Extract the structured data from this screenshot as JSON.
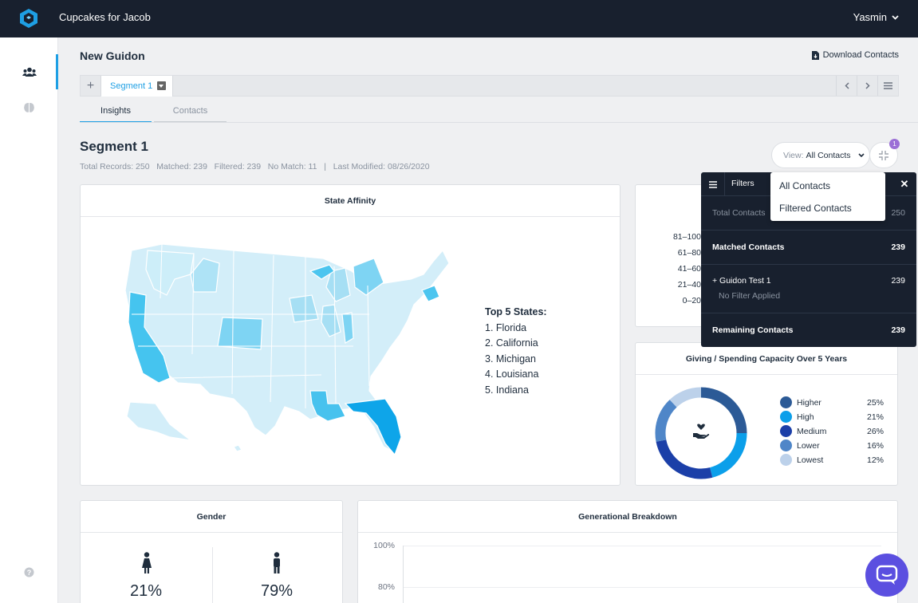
{
  "header": {
    "app_title": "Cupcakes for Jacob",
    "user_name": "Yasmin"
  },
  "page": {
    "title": "New Guidon",
    "download_label": "Download Contacts"
  },
  "segment_tabs": {
    "add": "+",
    "active_tab": "Segment 1"
  },
  "tabs": [
    {
      "label": "Insights",
      "active": true
    },
    {
      "label": "Contacts",
      "active": false
    }
  ],
  "segment": {
    "title": "Segment 1",
    "meta": "Total Records: 250   Matched: 239   Filtered: 239   No Match: 11   |   Last Modified: 08/26/2020"
  },
  "view": {
    "label": "View:",
    "value": "All Contacts",
    "options": [
      "All Contacts",
      "Filtered Contacts"
    ],
    "badge": "1"
  },
  "state_affinity": {
    "title": "State Affinity",
    "top5_heading": "Top 5 States:",
    "top5": [
      "1. Florida",
      "2. California",
      "3. Michigan",
      "4. Louisiana",
      "5. Indiana"
    ]
  },
  "score_bars": {
    "labels": [
      "81–100",
      "61–80",
      "41–60",
      "21–40",
      "0–20"
    ]
  },
  "filters_panel": {
    "title": "Filters",
    "total_label": "Total Contacts",
    "total_value": "250",
    "matched_label": "Matched Contacts",
    "matched_value": "239",
    "filter_label": "+ Guidon Test 1",
    "filter_value": "239",
    "filter_sub": "No Filter Applied",
    "remaining_label": "Remaining Contacts",
    "remaining_value": "239"
  },
  "giving": {
    "title": "Giving / Spending Capacity Over 5 Years",
    "legend": [
      {
        "name": "Higher",
        "pct": "25%",
        "color": "#2c5a96",
        "value": 25
      },
      {
        "name": "High",
        "pct": "21%",
        "color": "#0b9fea",
        "value": 21
      },
      {
        "name": "Medium",
        "pct": "26%",
        "color": "#1b3fa8",
        "value": 26
      },
      {
        "name": "Lower",
        "pct": "16%",
        "color": "#4f86c8",
        "value": 16
      },
      {
        "name": "Lowest",
        "pct": "12%",
        "color": "#bcd1ea",
        "value": 12
      }
    ]
  },
  "gender": {
    "title": "Gender",
    "female_pct": "21%",
    "male_pct": "79%"
  },
  "generational": {
    "title": "Generational Breakdown",
    "tick_100": "100%",
    "tick_80": "80%"
  },
  "icons": [
    "logo-icon",
    "people-icon",
    "brain-icon",
    "help-icon",
    "chevron-down-icon",
    "file-download-icon",
    "chevron-left-icon",
    "chevron-right-icon",
    "menu-icon",
    "compress-icon",
    "close-icon",
    "heart-hand-icon",
    "female-icon",
    "male-icon",
    "chat-icon"
  ]
}
